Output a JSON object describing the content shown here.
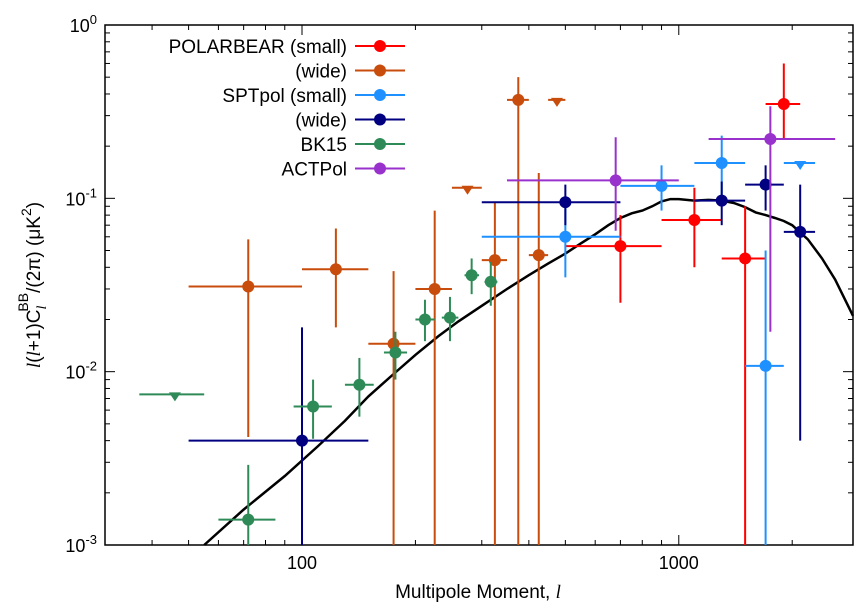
{
  "chart_data": {
    "type": "scatter",
    "title": "",
    "xscale": "log",
    "yscale": "log",
    "xlim": [
      30,
      2900
    ],
    "ylim": [
      0.001,
      1
    ],
    "xticks": [
      {
        "value": 100,
        "label": "100"
      },
      {
        "value": 1000,
        "label": "1000"
      }
    ],
    "yticks": [
      {
        "value": 0.001,
        "base": "10",
        "exp": "-3"
      },
      {
        "value": 0.01,
        "base": "10",
        "exp": "-2"
      },
      {
        "value": 0.1,
        "base": "10",
        "exp": "-1"
      },
      {
        "value": 1,
        "base": "10",
        "exp": "0"
      }
    ],
    "xlabel": {
      "text": "Multipole Moment, ",
      "symbol": "l"
    },
    "ylabel": {
      "pre": "l",
      "mid1": "(",
      "l2": "l",
      "mid2": "+1)C",
      "sub": "l",
      "sup": "BB",
      "post": "/(2π) (μK",
      "sup2": "2",
      "end": ")"
    },
    "legend_position": "top-left",
    "colors": {
      "POLARBEAR (small)": "#ff0000",
      "POLARBEAR (wide)": "#c84c0c",
      "SPTpol (small)": "#1e90ff",
      "SPTpol (wide)": "#000080",
      "BK15": "#2e8b57",
      "ACTPol": "#9932cc",
      "model": "#000000"
    },
    "series": [
      {
        "name": "POLARBEAR (small)",
        "label": "POLARBEAR (small)",
        "color": "#ff0000",
        "points": [
          {
            "x": 700,
            "y": 0.053,
            "xlo": 500,
            "xhi": 900,
            "ylo": 0.025,
            "yhi": 0.08
          },
          {
            "x": 1100,
            "y": 0.075,
            "xlo": 900,
            "xhi": 1300,
            "ylo": 0.04,
            "yhi": 0.115
          },
          {
            "x": 1500,
            "y": 0.045,
            "xlo": 1300,
            "xhi": 1700,
            "ylo": 0.0008,
            "yhi": 0.09
          },
          {
            "x": 1900,
            "y": 0.35,
            "xlo": 1700,
            "xhi": 2100,
            "ylo": 0.22,
            "yhi": 0.6
          }
        ]
      },
      {
        "name": "POLARBEAR (wide)",
        "label": "(wide)",
        "color": "#c84c0c",
        "points": [
          {
            "x": 72,
            "y": 0.031,
            "xlo": 50,
            "xhi": 100,
            "ylo": 0.0042,
            "yhi": 0.058
          },
          {
            "x": 123,
            "y": 0.039,
            "xlo": 100,
            "xhi": 150,
            "ylo": 0.018,
            "yhi": 0.067
          },
          {
            "x": 175,
            "y": 0.0145,
            "xlo": 150,
            "xhi": 200,
            "ylo": 0.0008,
            "yhi": 0.038
          },
          {
            "x": 225,
            "y": 0.03,
            "xlo": 200,
            "xhi": 250,
            "ylo": 0.0008,
            "yhi": 0.085
          },
          {
            "x": 325,
            "y": 0.044,
            "xlo": 300,
            "xhi": 350,
            "ylo": 0.0008,
            "yhi": 0.095
          },
          {
            "x": 375,
            "y": 0.37,
            "xlo": 350,
            "xhi": 400,
            "ylo": 0.0008,
            "yhi": 0.5
          },
          {
            "x": 425,
            "y": 0.047,
            "xlo": 400,
            "xhi": 450,
            "ylo": 0.0008,
            "yhi": 0.14
          }
        ],
        "upper_limits": [
          {
            "x": 275,
            "y": 0.115,
            "xlo": 250,
            "xhi": 300
          },
          {
            "x": 475,
            "y": 0.37,
            "xlo": 450,
            "xhi": 500
          }
        ]
      },
      {
        "name": "SPTpol (small)",
        "label": "SPTpol (small)",
        "color": "#1e90ff",
        "points": [
          {
            "x": 500,
            "y": 0.06,
            "xlo": 300,
            "xhi": 700,
            "ylo": 0.035,
            "yhi": 0.1
          },
          {
            "x": 900,
            "y": 0.118,
            "xlo": 700,
            "xhi": 1100,
            "ylo": 0.085,
            "yhi": 0.155
          },
          {
            "x": 1300,
            "y": 0.16,
            "xlo": 1100,
            "xhi": 1500,
            "ylo": 0.095,
            "yhi": 0.23
          },
          {
            "x": 1700,
            "y": 0.0108,
            "xlo": 1500,
            "xhi": 1900,
            "ylo": 0.0008,
            "yhi": 0.05
          }
        ],
        "upper_limits": [
          {
            "x": 2100,
            "y": 0.16,
            "xlo": 1900,
            "xhi": 2300
          }
        ]
      },
      {
        "name": "SPTpol (wide)",
        "label": "(wide)",
        "color": "#000080",
        "points": [
          {
            "x": 100,
            "y": 0.004,
            "xlo": 50,
            "xhi": 150,
            "ylo": 0.0008,
            "yhi": 0.018
          },
          {
            "x": 500,
            "y": 0.095,
            "xlo": 300,
            "xhi": 700,
            "ylo": 0.07,
            "yhi": 0.12
          },
          {
            "x": 1300,
            "y": 0.097,
            "xlo": 1100,
            "xhi": 1500,
            "ylo": 0.07,
            "yhi": 0.125
          },
          {
            "x": 1700,
            "y": 0.12,
            "xlo": 1500,
            "xhi": 1900,
            "ylo": 0.085,
            "yhi": 0.155
          },
          {
            "x": 2100,
            "y": 0.064,
            "xlo": 1900,
            "xhi": 2300,
            "ylo": 0.004,
            "yhi": 0.12
          }
        ]
      },
      {
        "name": "BK15",
        "label": "BK15",
        "color": "#2e8b57",
        "points": [
          {
            "x": 72,
            "y": 0.0014,
            "xlo": 60,
            "xhi": 85,
            "ylo": 0.0008,
            "yhi": 0.0029
          },
          {
            "x": 107,
            "y": 0.0063,
            "xlo": 95,
            "xhi": 120,
            "ylo": 0.0041,
            "yhi": 0.009
          },
          {
            "x": 142,
            "y": 0.0084,
            "xlo": 130,
            "xhi": 155,
            "ylo": 0.0055,
            "yhi": 0.012
          },
          {
            "x": 177,
            "y": 0.0129,
            "xlo": 165,
            "xhi": 190,
            "ylo": 0.009,
            "yhi": 0.017
          },
          {
            "x": 212,
            "y": 0.02,
            "xlo": 200,
            "xhi": 225,
            "ylo": 0.015,
            "yhi": 0.026
          },
          {
            "x": 247,
            "y": 0.0205,
            "xlo": 235,
            "xhi": 260,
            "ylo": 0.015,
            "yhi": 0.027
          },
          {
            "x": 282,
            "y": 0.036,
            "xlo": 270,
            "xhi": 295,
            "ylo": 0.028,
            "yhi": 0.045
          },
          {
            "x": 317,
            "y": 0.033,
            "xlo": 305,
            "xhi": 330,
            "ylo": 0.024,
            "yhi": 0.043
          }
        ],
        "upper_limits": [
          {
            "x": 46,
            "y": 0.0074,
            "xlo": 37,
            "xhi": 55
          }
        ]
      },
      {
        "name": "ACTPol",
        "label": "ACTPol",
        "color": "#9932cc",
        "points": [
          {
            "x": 680,
            "y": 0.127,
            "xlo": 350,
            "xhi": 1000,
            "ylo": 0.065,
            "yhi": 0.225
          },
          {
            "x": 1750,
            "y": 0.22,
            "xlo": 1200,
            "xhi": 2600,
            "ylo": 0.017,
            "yhi": 0.34
          }
        ]
      }
    ],
    "model_curve": {
      "x": [
        55,
        70,
        90,
        110,
        130,
        150,
        175,
        200,
        230,
        260,
        300,
        350,
        400,
        450,
        500,
        550,
        600,
        650,
        700,
        750,
        800,
        850,
        900,
        950,
        1000,
        1100,
        1200,
        1300,
        1400,
        1500,
        1600,
        1700,
        1800,
        1900,
        2000,
        2200,
        2400,
        2600,
        2900
      ],
      "y": [
        0.001,
        0.0016,
        0.0025,
        0.0037,
        0.0052,
        0.0072,
        0.0097,
        0.0125,
        0.016,
        0.0195,
        0.024,
        0.03,
        0.036,
        0.042,
        0.048,
        0.055,
        0.062,
        0.07,
        0.077,
        0.082,
        0.085,
        0.09,
        0.096,
        0.099,
        0.099,
        0.097,
        0.098,
        0.097,
        0.094,
        0.089,
        0.083,
        0.08,
        0.077,
        0.074,
        0.07,
        0.058,
        0.045,
        0.034,
        0.021
      ]
    }
  }
}
